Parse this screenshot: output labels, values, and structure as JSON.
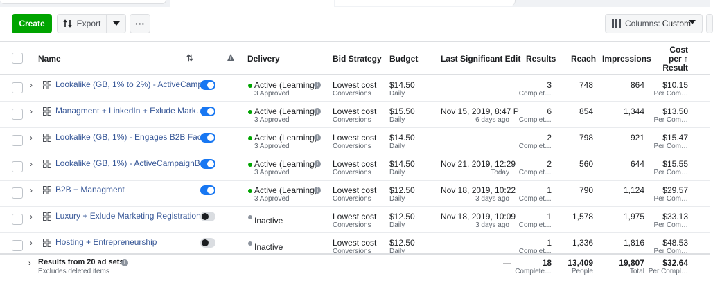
{
  "toolbar": {
    "create_label": "Create",
    "export_label": "Export",
    "more_label": "···",
    "columns_prefix": "Columns:",
    "columns_value": "Custom"
  },
  "header": {
    "name": "Name",
    "delivery": "Delivery",
    "bid_strategy": "Bid Strategy",
    "budget": "Budget",
    "last_edit": "Last Significant Edit",
    "results": "Results",
    "reach": "Reach",
    "impressions": "Impressions",
    "cost_line1": "Cost",
    "cost_line2": "per ↑",
    "cost_line3": "Result"
  },
  "rows": [
    {
      "name": "Lookalike (GB, 1% to 2%) - ActiveCamp…",
      "toggle": "on",
      "status": "Active (Learning)",
      "status_type": "active",
      "approved": "3 Approved",
      "bid": "Lowest cost",
      "bid_sub": "Conversions",
      "budget": "$14.50",
      "budget_sub": "Daily",
      "edit": "",
      "edit_sub": "",
      "results": "3",
      "results_sub": "Complet…",
      "reach": "748",
      "impressions": "864",
      "cost": "$10.15",
      "cost_sub": "Per Com…"
    },
    {
      "name": "Managment + LinkedIn + Exlude Mark…",
      "toggle": "on",
      "status": "Active (Learning)",
      "status_type": "active",
      "approved": "3 Approved",
      "bid": "Lowest cost",
      "bid_sub": "Conversions",
      "budget": "$15.50",
      "budget_sub": "Daily",
      "edit": "Nov 15, 2019, 8:47 P",
      "edit_sub": "6 days ago",
      "results": "6",
      "results_sub": "Complet…",
      "reach": "854",
      "impressions": "1,344",
      "cost": "$13.50",
      "cost_sub": "Per Com…"
    },
    {
      "name": "Lookalike (GB, 1%) - Engages B2B Fac…",
      "toggle": "on",
      "status": "Active (Learning)",
      "status_type": "active",
      "approved": "3 Approved",
      "bid": "Lowest cost",
      "bid_sub": "Conversions",
      "budget": "$14.50",
      "budget_sub": "Daily",
      "edit": "",
      "edit_sub": "",
      "results": "2",
      "results_sub": "Complet…",
      "reach": "798",
      "impressions": "921",
      "cost": "$15.47",
      "cost_sub": "Per Com…"
    },
    {
      "name": "Lookalike (GB, 1%) - ActiveCampaignB…",
      "toggle": "on",
      "status": "Active (Learning)",
      "status_type": "active",
      "approved": "3 Approved",
      "bid": "Lowest cost",
      "bid_sub": "Conversions",
      "budget": "$14.50",
      "budget_sub": "Daily",
      "edit": "Nov 21, 2019, 12:29",
      "edit_sub": "Today",
      "results": "2",
      "results_sub": "Complet…",
      "reach": "560",
      "impressions": "644",
      "cost": "$15.55",
      "cost_sub": "Per Com…"
    },
    {
      "name": "B2B + Managment",
      "toggle": "on",
      "status": "Active (Learning)",
      "status_type": "active",
      "approved": "3 Approved",
      "bid": "Lowest cost",
      "bid_sub": "Conversions",
      "budget": "$12.50",
      "budget_sub": "Daily",
      "edit": "Nov 18, 2019, 10:22",
      "edit_sub": "3 days ago",
      "results": "1",
      "results_sub": "Complet…",
      "reach": "790",
      "impressions": "1,124",
      "cost": "$29.57",
      "cost_sub": "Per Com…"
    },
    {
      "name": "Luxury + Exlude Marketing Registration",
      "toggle": "off",
      "status": "Inactive",
      "status_type": "inactive",
      "approved": "",
      "bid": "Lowest cost",
      "bid_sub": "Conversions",
      "budget": "$12.50",
      "budget_sub": "Daily",
      "edit": "Nov 18, 2019, 10:09",
      "edit_sub": "3 days ago",
      "results": "1",
      "results_sub": "Complet…",
      "reach": "1,578",
      "impressions": "1,975",
      "cost": "$33.13",
      "cost_sub": "Per Com…"
    },
    {
      "name": "Hosting + Entrepreneurship",
      "toggle": "off",
      "status": "Inactive",
      "status_type": "inactive",
      "approved": "",
      "bid": "Lowest cost",
      "bid_sub": "Conversions",
      "budget": "$12.50",
      "budget_sub": "Daily",
      "edit": "",
      "edit_sub": "",
      "results": "1",
      "results_sub": "Complet…",
      "reach": "1,336",
      "impressions": "1,816",
      "cost": "$48.53",
      "cost_sub": "Per Com…"
    }
  ],
  "footer": {
    "title": "Results from 20 ad sets",
    "subtitle": "Excludes deleted items",
    "dash": "—",
    "results": "18",
    "results_sub": "Complete…",
    "reach": "13,409",
    "reach_sub": "People",
    "impressions": "19,807",
    "impressions_sub": "Total",
    "cost": "$32.64",
    "cost_sub": "Per Compl…"
  },
  "colors": {
    "create": "#00a400",
    "link": "#385898",
    "toggle_on": "#1877f2",
    "active_dot": "#00a400",
    "inactive_dot": "#8d949e"
  }
}
